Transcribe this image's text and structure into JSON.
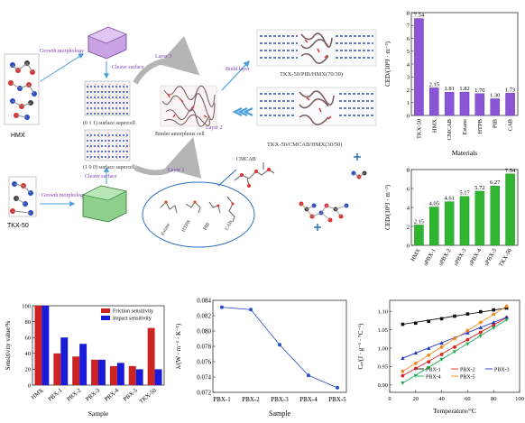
{
  "colors": {
    "violet": "#8a55d6",
    "green": "#2fb52f",
    "red": "#cc2222",
    "blue": "#1a1ad9",
    "schematic_blue": "#2a4ec8",
    "arrow_blue": "#4aa0dd",
    "caption_purple": "#7a3fb8"
  },
  "schematic": {
    "hmx_label": "HMX",
    "tkx_label": "TKX-50",
    "growth_morphology_top": "Growth morphology",
    "growth_morphology_bottom": "Growth morphology",
    "cleave_surface_top": "Cleave surface",
    "cleave_surface_bottom": "Cleave surface",
    "supercell_top": "(0 1 1) surface supercell",
    "supercell_bottom": "(1 0 0) surface supercell",
    "layer3": "Layer 3",
    "layer2": "Layer 2",
    "layer1": "Layer 1",
    "build_layer": "Build layer",
    "binder_cell": "Binder amorphous cell",
    "result_top": "TKX-50/PIB/HMX(70/30)",
    "result_bottom": "TKX-50/CMCAB/HMX(30/50)",
    "binders": [
      "Estane",
      "HTPB",
      "PIB",
      "CAB"
    ],
    "cmcab_label": "CMCAB"
  },
  "chart_data": [
    {
      "id": "ced-materials",
      "type": "bar",
      "categories": [
        "TKX-50",
        "HMX",
        "CMCAB",
        "Estane",
        "HTPB",
        "PIB",
        "CAB"
      ],
      "values": [
        7.54,
        2.15,
        1.81,
        1.82,
        1.7,
        1.3,
        1.73
      ],
      "value_labels": [
        "7.54",
        "2.15",
        "1.81",
        "1.82",
        "1.70",
        "1.30",
        "1.73"
      ],
      "xlabel": "Materials",
      "ylabel": "CED/(10⁸J · m⁻³)",
      "yticks": [
        "0",
        "1",
        "2",
        "3",
        "4",
        "5",
        "6",
        "7",
        "8"
      ],
      "ylim": [
        0,
        8
      ],
      "color": "#8a55d6"
    },
    {
      "id": "ced-samples",
      "type": "bar",
      "categories": [
        "HMX",
        "sPBX-1",
        "sPBX-2",
        "sPBX-3",
        "sPBX-4",
        "sPBX-5",
        "TKX-50"
      ],
      "values": [
        2.15,
        4.05,
        4.61,
        5.17,
        5.72,
        6.27,
        7.54
      ],
      "value_labels": [
        "2.15",
        "4.05",
        "4.61",
        "5.17",
        "5.72",
        "6.27",
        "7.54"
      ],
      "ylabel": "CED/(10⁸J · m⁻³)",
      "yticks": [
        "0",
        "2",
        "4",
        "6",
        "8"
      ],
      "ylim": [
        0,
        8
      ],
      "color": "#2fb52f"
    },
    {
      "id": "sensitivity",
      "type": "bar",
      "categories": [
        "HMX",
        "PBX-1",
        "PBX-2",
        "PBX-3",
        "PBX-4",
        "PBX-5",
        "TKX-50"
      ],
      "series": [
        {
          "name": "Friction sensitivity",
          "values": [
            100,
            40,
            36,
            32,
            24,
            24,
            72
          ],
          "color": "#cc2222"
        },
        {
          "name": "Impact sensitivity",
          "values": [
            100,
            60,
            52,
            32,
            28,
            20,
            20
          ],
          "color": "#1a1ad9"
        }
      ],
      "xlabel": "Sample",
      "ylabel": "Sensitivity value/%",
      "yticks": [
        "0",
        "20",
        "40",
        "60",
        "80",
        "100"
      ],
      "ylim": [
        0,
        100
      ],
      "legend": "top-right"
    },
    {
      "id": "thermal-conductivity",
      "type": "line",
      "categories": [
        "PBX-1",
        "PBX-2",
        "PBX-3",
        "PBX-4",
        "PBX-5"
      ],
      "values": [
        0.0831,
        0.0828,
        0.0782,
        0.0742,
        0.0726
      ],
      "xlabel": "Sample",
      "ylabel": "λ/(W · m⁻¹ · K⁻¹)",
      "yticks": [
        "0.072",
        "0.074",
        "0.076",
        "0.078",
        "0.080",
        "0.082",
        "0.084"
      ],
      "ylim": [
        0.072,
        0.084
      ],
      "color": "#2a4ec8"
    },
    {
      "id": "heat-capacity",
      "type": "scatter",
      "x": [
        10,
        20,
        30,
        40,
        50,
        60,
        70,
        80,
        90
      ],
      "xticks": [
        "0",
        "20",
        "40",
        "60",
        "80",
        "100"
      ],
      "xlim": [
        0,
        100
      ],
      "xlabel": "Temperature/°C",
      "ylabel": "Cₚ/(J · g⁻¹ · °C⁻¹)",
      "yticks": [
        "0.90",
        "0.95",
        "1.00",
        "1.05",
        "1.10"
      ],
      "ylim": [
        0.88,
        1.13
      ],
      "series": [
        {
          "name": "PBX-1",
          "color": "#111111",
          "marker": "square",
          "values": [
            1.065,
            1.068,
            1.073,
            1.08,
            1.087,
            1.093,
            1.099,
            1.104,
            1.109
          ]
        },
        {
          "name": "PBX-2",
          "color": "#dd2222",
          "marker": "circle",
          "values": [
            0.925,
            0.945,
            0.963,
            0.983,
            1.003,
            1.023,
            1.043,
            1.063,
            1.083
          ]
        },
        {
          "name": "PBX-3",
          "color": "#2233cc",
          "marker": "triangle",
          "values": [
            0.973,
            0.987,
            1.0,
            1.014,
            1.028,
            1.042,
            1.056,
            1.07,
            1.084
          ]
        },
        {
          "name": "PBX-4",
          "color": "#22aa55",
          "marker": "triangle-down",
          "values": [
            0.905,
            0.925,
            0.947,
            0.969,
            0.99,
            1.011,
            1.033,
            1.055,
            1.077
          ]
        },
        {
          "name": "PBX-5",
          "color": "#ee8822",
          "marker": "circle",
          "values": [
            0.937,
            0.959,
            0.981,
            1.003,
            1.026,
            1.048,
            1.07,
            1.092,
            1.114
          ]
        }
      ],
      "legend": "bottom-right"
    }
  ]
}
